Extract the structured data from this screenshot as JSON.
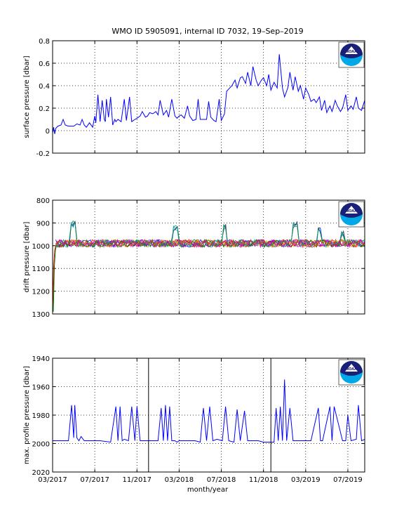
{
  "title": "WMO ID 5905091, internal ID 7032, 19–Sep–2019",
  "xlabel": "month/year",
  "x_tick_labels": [
    "03/2017",
    "07/2017",
    "11/2017",
    "03/2018",
    "07/2018",
    "11/2018",
    "03/2019",
    "07/2019"
  ],
  "logo_text": "NOAA",
  "colors": {
    "line": "#0000ff",
    "axes": "#000000",
    "logo_dark": "#1a1f78",
    "logo_light": "#00a8e8"
  },
  "chart_data": [
    {
      "type": "line",
      "ylabel": "surface pressure [dbar]",
      "ylim": [
        -0.2,
        0.8
      ],
      "y_tick_labels": [
        "-0.2",
        "0",
        "0.2",
        "0.4",
        "0.6",
        "0.8"
      ],
      "grid": true,
      "series": [
        {
          "x_months": [
            0,
            0.1,
            0.2,
            0.3,
            0.5,
            0.8,
            1.0,
            1.2,
            1.5,
            2.0,
            2.3,
            2.6,
            2.8,
            3.0,
            3.2,
            3.5,
            3.8,
            4.0,
            4.1,
            4.3,
            4.5,
            4.7,
            4.9,
            5.0,
            5.1,
            5.3,
            5.5,
            5.7,
            5.9,
            6.0,
            6.2,
            6.5,
            6.8,
            7.0,
            7.3,
            7.5,
            7.8,
            8.0,
            8.3,
            8.5,
            8.8,
            9.0,
            9.2,
            9.5,
            9.8,
            10.0,
            10.2,
            10.5,
            10.8,
            11.0,
            11.3,
            11.6,
            11.8,
            12.0,
            12.2,
            12.5,
            12.8,
            13.0,
            13.3,
            13.6,
            13.8,
            14.0,
            14.3,
            14.6,
            14.8,
            15.0,
            15.3,
            15.5,
            15.8,
            16.0,
            16.3,
            16.5,
            16.8,
            17.0,
            17.3,
            17.5,
            17.8,
            18.0,
            18.3,
            18.5,
            18.8,
            19.0,
            19.3,
            19.5,
            19.8,
            20.0,
            20.3,
            20.5,
            20.7,
            21.0,
            21.3,
            21.5,
            21.8,
            22.0,
            22.3,
            22.5,
            22.8,
            23.0,
            23.3,
            23.5,
            23.8,
            24.0,
            24.3,
            24.5,
            24.8,
            25.0,
            25.3,
            25.5,
            25.8,
            26.0,
            26.3,
            26.5,
            26.8,
            27.0,
            27.3,
            27.5,
            27.8,
            28.0,
            28.3,
            28.5,
            28.8,
            29.0,
            29.3,
            29.6
          ],
          "y": [
            -0.02,
            0.03,
            -0.03,
            0.02,
            0.04,
            0.05,
            0.1,
            0.05,
            0.04,
            0.04,
            0.06,
            0.05,
            0.1,
            0.05,
            0.03,
            0.07,
            0.03,
            0.13,
            0.07,
            0.32,
            0.08,
            0.27,
            0.1,
            0.08,
            0.28,
            0.12,
            0.3,
            0.05,
            0.1,
            0.08,
            0.1,
            0.08,
            0.28,
            0.09,
            0.3,
            0.08,
            0.1,
            0.11,
            0.13,
            0.17,
            0.12,
            0.13,
            0.16,
            0.15,
            0.17,
            0.14,
            0.27,
            0.14,
            0.18,
            0.12,
            0.28,
            0.13,
            0.11,
            0.13,
            0.14,
            0.11,
            0.22,
            0.13,
            0.09,
            0.1,
            0.28,
            0.1,
            0.1,
            0.1,
            0.26,
            0.12,
            0.09,
            0.08,
            0.28,
            0.09,
            0.15,
            0.35,
            0.38,
            0.4,
            0.45,
            0.38,
            0.47,
            0.48,
            0.42,
            0.52,
            0.4,
            0.57,
            0.45,
            0.4,
            0.45,
            0.47,
            0.4,
            0.5,
            0.36,
            0.43,
            0.38,
            0.68,
            0.38,
            0.3,
            0.38,
            0.52,
            0.36,
            0.48,
            0.35,
            0.4,
            0.28,
            0.38,
            0.32,
            0.26,
            0.28,
            0.25,
            0.3,
            0.18,
            0.27,
            0.16,
            0.22,
            0.17,
            0.27,
            0.22,
            0.17,
            0.2,
            0.32,
            0.18,
            0.22,
            0.19,
            0.3,
            0.2,
            0.18,
            0.27
          ]
        }
      ]
    },
    {
      "type": "line",
      "ylabel": "drift pressure [dbar]",
      "ylim": [
        800,
        1300
      ],
      "y_reversed": true,
      "y_tick_labels": [
        "800",
        "900",
        "1000",
        "1100",
        "1200",
        "1300"
      ],
      "grid": true,
      "series_count": 12,
      "series_colors": [
        "#0000ff",
        "#008000",
        "#ff0000",
        "#00bfbf",
        "#bf00bf",
        "#bfbf00",
        "#404040",
        "#ff8000",
        "#8000ff",
        "#00a060",
        "#ff0080",
        "#806000"
      ],
      "baseline": 990,
      "descent": {
        "x_months": [
          0,
          0.05,
          0.1,
          0.2,
          0.3
        ],
        "y": [
          1290,
          1200,
          1090,
          1020,
          1000
        ]
      },
      "spikes": [
        {
          "x_month": 2.0,
          "y": 890
        },
        {
          "x_month": 11.7,
          "y": 910
        },
        {
          "x_month": 16.3,
          "y": 905
        },
        {
          "x_month": 23.0,
          "y": 893
        },
        {
          "x_month": 25.3,
          "y": 920
        },
        {
          "x_month": 27.5,
          "y": 935
        }
      ]
    },
    {
      "type": "line",
      "ylabel": "max. profile pressure [dbar]",
      "ylim": [
        1940,
        2020
      ],
      "y_reversed": true,
      "y_tick_labels": [
        "1940",
        "1960",
        "1980",
        "2000",
        "2020"
      ],
      "grid": true,
      "vertical_markers_months": [
        9.1,
        20.7
      ],
      "series": [
        {
          "x_months": [
            0,
            1.5,
            1.8,
            2.0,
            2.1,
            2.3,
            2.5,
            2.7,
            3.0,
            3.5,
            4.5,
            5.5,
            6.0,
            6.2,
            6.4,
            6.6,
            6.8,
            7.2,
            7.5,
            7.8,
            8.0,
            8.3,
            8.8,
            9.5,
            10.0,
            10.3,
            10.5,
            10.7,
            10.9,
            11.1,
            11.3,
            11.6,
            11.8,
            12.0,
            12.5,
            13.5,
            14.0,
            14.3,
            14.6,
            14.9,
            15.2,
            15.6,
            16.1,
            16.4,
            16.7,
            17.2,
            17.5,
            17.8,
            18.2,
            18.5,
            19.5,
            20.0,
            21.0,
            21.2,
            21.4,
            21.6,
            21.8,
            22.0,
            22.2,
            22.5,
            22.8,
            23.0,
            23.2,
            23.5,
            24.5,
            25.2,
            25.4,
            25.6,
            26.3,
            26.5,
            26.7,
            27.5,
            27.8,
            28.0,
            28.3,
            28.8,
            29.0,
            29.3,
            29.6
          ],
          "y": [
            1998,
            1998,
            1973,
            1996,
            1973,
            1996,
            1998,
            1995,
            1998,
            1998,
            1998,
            1999,
            1974,
            1998,
            1974,
            1998,
            1997,
            1998,
            1974,
            1998,
            1974,
            1998,
            1998,
            1998,
            1998,
            1975,
            1998,
            1973,
            1998,
            1974,
            1998,
            1998,
            1999,
            1998,
            1998,
            1998,
            1999,
            1975,
            1998,
            1974,
            1998,
            1997,
            1998,
            1974,
            1998,
            1999,
            1976,
            1998,
            1977,
            1998,
            1998,
            1999,
            1999,
            1975,
            1998,
            1974,
            1998,
            1955,
            1998,
            1975,
            1998,
            1998,
            1998,
            1998,
            1998,
            1975,
            1998,
            1998,
            1974,
            1998,
            1974,
            1998,
            1998,
            1980,
            1998,
            1997,
            1973,
            1998,
            1997
          ]
        }
      ]
    }
  ]
}
